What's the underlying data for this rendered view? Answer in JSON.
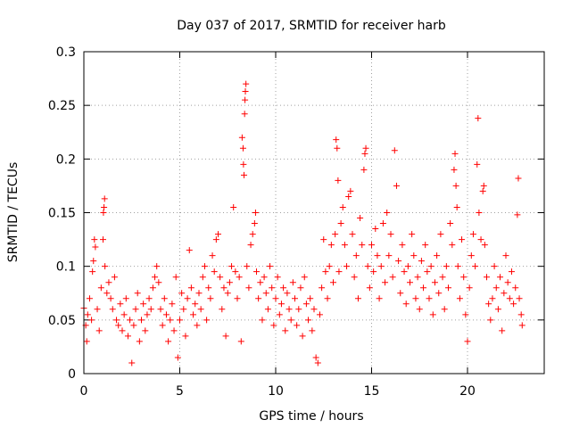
{
  "chart_data": {
    "type": "scatter",
    "title": "Day 037 of 2017, SRMTID for receiver harb",
    "xlabel": "GPS time / hours",
    "ylabel": "SRMTID / TECUs",
    "xlim": [
      0,
      24
    ],
    "ylim": [
      0,
      0.3
    ],
    "x_ticks": [
      0,
      5,
      10,
      15,
      20
    ],
    "x_tick_labels": [
      "0",
      "5",
      "10",
      "15",
      "20"
    ],
    "y_ticks": [
      0,
      0.05,
      0.1,
      0.15,
      0.2,
      0.25,
      0.3
    ],
    "y_tick_labels": [
      "0",
      "0.05",
      "0.1",
      "0.15",
      "0.2",
      "0.25",
      "0.3"
    ],
    "grid": true,
    "marker": "plus",
    "color": "#ff0000",
    "series": [
      {
        "name": "SRMTID",
        "points": [
          [
            0.0,
            0.061
          ],
          [
            0.1,
            0.045
          ],
          [
            0.15,
            0.03
          ],
          [
            0.2,
            0.055
          ],
          [
            0.3,
            0.07
          ],
          [
            0.4,
            0.05
          ],
          [
            0.45,
            0.095
          ],
          [
            0.5,
            0.105
          ],
          [
            0.55,
            0.125
          ],
          [
            0.6,
            0.118
          ],
          [
            0.7,
            0.06
          ],
          [
            0.8,
            0.04
          ],
          [
            0.9,
            0.08
          ],
          [
            1.0,
            0.125
          ],
          [
            1.02,
            0.15
          ],
          [
            1.05,
            0.155
          ],
          [
            1.08,
            0.163
          ],
          [
            1.1,
            0.1
          ],
          [
            1.2,
            0.075
          ],
          [
            1.3,
            0.085
          ],
          [
            1.4,
            0.07
          ],
          [
            1.5,
            0.06
          ],
          [
            1.6,
            0.09
          ],
          [
            1.7,
            0.05
          ],
          [
            1.8,
            0.045
          ],
          [
            1.9,
            0.065
          ],
          [
            2.0,
            0.04
          ],
          [
            2.1,
            0.055
          ],
          [
            2.2,
            0.07
          ],
          [
            2.3,
            0.035
          ],
          [
            2.4,
            0.05
          ],
          [
            2.5,
            0.01
          ],
          [
            2.6,
            0.045
          ],
          [
            2.7,
            0.06
          ],
          [
            2.8,
            0.075
          ],
          [
            2.9,
            0.03
          ],
          [
            3.0,
            0.05
          ],
          [
            3.1,
            0.065
          ],
          [
            3.2,
            0.04
          ],
          [
            3.3,
            0.055
          ],
          [
            3.4,
            0.07
          ],
          [
            3.5,
            0.06
          ],
          [
            3.6,
            0.08
          ],
          [
            3.7,
            0.09
          ],
          [
            3.8,
            0.1
          ],
          [
            3.9,
            0.085
          ],
          [
            4.0,
            0.06
          ],
          [
            4.1,
            0.045
          ],
          [
            4.2,
            0.07
          ],
          [
            4.3,
            0.055
          ],
          [
            4.4,
            0.03
          ],
          [
            4.5,
            0.05
          ],
          [
            4.6,
            0.065
          ],
          [
            4.7,
            0.04
          ],
          [
            4.8,
            0.09
          ],
          [
            4.9,
            0.015
          ],
          [
            5.0,
            0.05
          ],
          [
            5.1,
            0.075
          ],
          [
            5.2,
            0.06
          ],
          [
            5.3,
            0.035
          ],
          [
            5.4,
            0.07
          ],
          [
            5.5,
            0.115
          ],
          [
            5.6,
            0.08
          ],
          [
            5.7,
            0.055
          ],
          [
            5.8,
            0.065
          ],
          [
            5.9,
            0.045
          ],
          [
            6.0,
            0.075
          ],
          [
            6.1,
            0.06
          ],
          [
            6.2,
            0.09
          ],
          [
            6.3,
            0.1
          ],
          [
            6.4,
            0.05
          ],
          [
            6.5,
            0.08
          ],
          [
            6.6,
            0.07
          ],
          [
            6.7,
            0.11
          ],
          [
            6.8,
            0.095
          ],
          [
            6.9,
            0.125
          ],
          [
            7.0,
            0.13
          ],
          [
            7.1,
            0.09
          ],
          [
            7.2,
            0.06
          ],
          [
            7.3,
            0.08
          ],
          [
            7.4,
            0.035
          ],
          [
            7.5,
            0.075
          ],
          [
            7.6,
            0.085
          ],
          [
            7.7,
            0.1
          ],
          [
            7.8,
            0.155
          ],
          [
            7.9,
            0.095
          ],
          [
            8.0,
            0.07
          ],
          [
            8.1,
            0.09
          ],
          [
            8.2,
            0.03
          ],
          [
            8.25,
            0.22
          ],
          [
            8.3,
            0.21
          ],
          [
            8.32,
            0.195
          ],
          [
            8.35,
            0.185
          ],
          [
            8.38,
            0.242
          ],
          [
            8.4,
            0.255
          ],
          [
            8.42,
            0.263
          ],
          [
            8.45,
            0.27
          ],
          [
            8.5,
            0.1
          ],
          [
            8.6,
            0.08
          ],
          [
            8.7,
            0.12
          ],
          [
            8.8,
            0.13
          ],
          [
            8.9,
            0.14
          ],
          [
            8.95,
            0.15
          ],
          [
            9.0,
            0.095
          ],
          [
            9.1,
            0.07
          ],
          [
            9.2,
            0.085
          ],
          [
            9.3,
            0.05
          ],
          [
            9.4,
            0.09
          ],
          [
            9.5,
            0.075
          ],
          [
            9.6,
            0.06
          ],
          [
            9.7,
            0.1
          ],
          [
            9.8,
            0.08
          ],
          [
            9.9,
            0.045
          ],
          [
            10.0,
            0.07
          ],
          [
            10.1,
            0.09
          ],
          [
            10.2,
            0.055
          ],
          [
            10.3,
            0.065
          ],
          [
            10.4,
            0.08
          ],
          [
            10.5,
            0.04
          ],
          [
            10.6,
            0.075
          ],
          [
            10.7,
            0.06
          ],
          [
            10.8,
            0.05
          ],
          [
            10.9,
            0.085
          ],
          [
            11.0,
            0.07
          ],
          [
            11.1,
            0.045
          ],
          [
            11.2,
            0.06
          ],
          [
            11.3,
            0.08
          ],
          [
            11.4,
            0.035
          ],
          [
            11.5,
            0.09
          ],
          [
            11.6,
            0.065
          ],
          [
            11.7,
            0.05
          ],
          [
            11.8,
            0.07
          ],
          [
            11.9,
            0.04
          ],
          [
            12.0,
            0.06
          ],
          [
            12.1,
            0.015
          ],
          [
            12.2,
            0.01
          ],
          [
            12.3,
            0.055
          ],
          [
            12.4,
            0.08
          ],
          [
            12.5,
            0.125
          ],
          [
            12.6,
            0.095
          ],
          [
            12.7,
            0.07
          ],
          [
            12.8,
            0.1
          ],
          [
            12.9,
            0.12
          ],
          [
            13.0,
            0.085
          ],
          [
            13.1,
            0.13
          ],
          [
            13.15,
            0.218
          ],
          [
            13.2,
            0.21
          ],
          [
            13.25,
            0.18
          ],
          [
            13.3,
            0.095
          ],
          [
            13.4,
            0.14
          ],
          [
            13.5,
            0.155
          ],
          [
            13.6,
            0.12
          ],
          [
            13.7,
            0.1
          ],
          [
            13.8,
            0.165
          ],
          [
            13.9,
            0.17
          ],
          [
            14.0,
            0.13
          ],
          [
            14.1,
            0.09
          ],
          [
            14.2,
            0.11
          ],
          [
            14.3,
            0.07
          ],
          [
            14.4,
            0.145
          ],
          [
            14.5,
            0.12
          ],
          [
            14.6,
            0.19
          ],
          [
            14.65,
            0.205
          ],
          [
            14.7,
            0.21
          ],
          [
            14.8,
            0.1
          ],
          [
            14.9,
            0.08
          ],
          [
            15.0,
            0.12
          ],
          [
            15.1,
            0.095
          ],
          [
            15.2,
            0.135
          ],
          [
            15.3,
            0.11
          ],
          [
            15.4,
            0.07
          ],
          [
            15.5,
            0.1
          ],
          [
            15.6,
            0.14
          ],
          [
            15.7,
            0.085
          ],
          [
            15.8,
            0.15
          ],
          [
            15.9,
            0.11
          ],
          [
            16.0,
            0.13
          ],
          [
            16.1,
            0.09
          ],
          [
            16.2,
            0.208
          ],
          [
            16.3,
            0.175
          ],
          [
            16.4,
            0.105
          ],
          [
            16.5,
            0.075
          ],
          [
            16.6,
            0.12
          ],
          [
            16.7,
            0.095
          ],
          [
            16.8,
            0.065
          ],
          [
            16.9,
            0.1
          ],
          [
            17.0,
            0.085
          ],
          [
            17.1,
            0.13
          ],
          [
            17.2,
            0.11
          ],
          [
            17.3,
            0.07
          ],
          [
            17.4,
            0.09
          ],
          [
            17.5,
            0.06
          ],
          [
            17.6,
            0.105
          ],
          [
            17.7,
            0.08
          ],
          [
            17.8,
            0.12
          ],
          [
            17.9,
            0.095
          ],
          [
            18.0,
            0.07
          ],
          [
            18.1,
            0.1
          ],
          [
            18.2,
            0.055
          ],
          [
            18.3,
            0.085
          ],
          [
            18.4,
            0.11
          ],
          [
            18.5,
            0.075
          ],
          [
            18.6,
            0.13
          ],
          [
            18.7,
            0.09
          ],
          [
            18.8,
            0.06
          ],
          [
            18.9,
            0.1
          ],
          [
            19.0,
            0.08
          ],
          [
            19.1,
            0.14
          ],
          [
            19.2,
            0.12
          ],
          [
            19.3,
            0.19
          ],
          [
            19.35,
            0.205
          ],
          [
            19.4,
            0.175
          ],
          [
            19.45,
            0.155
          ],
          [
            19.5,
            0.1
          ],
          [
            19.6,
            0.07
          ],
          [
            19.7,
            0.125
          ],
          [
            19.8,
            0.09
          ],
          [
            19.9,
            0.055
          ],
          [
            20.0,
            0.03
          ],
          [
            20.1,
            0.08
          ],
          [
            20.2,
            0.11
          ],
          [
            20.3,
            0.13
          ],
          [
            20.4,
            0.1
          ],
          [
            20.5,
            0.195
          ],
          [
            20.55,
            0.238
          ],
          [
            20.6,
            0.15
          ],
          [
            20.7,
            0.125
          ],
          [
            20.8,
            0.17
          ],
          [
            20.85,
            0.175
          ],
          [
            20.9,
            0.12
          ],
          [
            21.0,
            0.09
          ],
          [
            21.1,
            0.065
          ],
          [
            21.2,
            0.05
          ],
          [
            21.3,
            0.07
          ],
          [
            21.4,
            0.1
          ],
          [
            21.5,
            0.08
          ],
          [
            21.6,
            0.06
          ],
          [
            21.7,
            0.09
          ],
          [
            21.8,
            0.04
          ],
          [
            21.9,
            0.075
          ],
          [
            22.0,
            0.11
          ],
          [
            22.1,
            0.085
          ],
          [
            22.2,
            0.07
          ],
          [
            22.3,
            0.095
          ],
          [
            22.4,
            0.065
          ],
          [
            22.5,
            0.08
          ],
          [
            22.6,
            0.148
          ],
          [
            22.65,
            0.182
          ],
          [
            22.7,
            0.07
          ],
          [
            22.8,
            0.055
          ],
          [
            22.85,
            0.045
          ]
        ]
      }
    ]
  }
}
